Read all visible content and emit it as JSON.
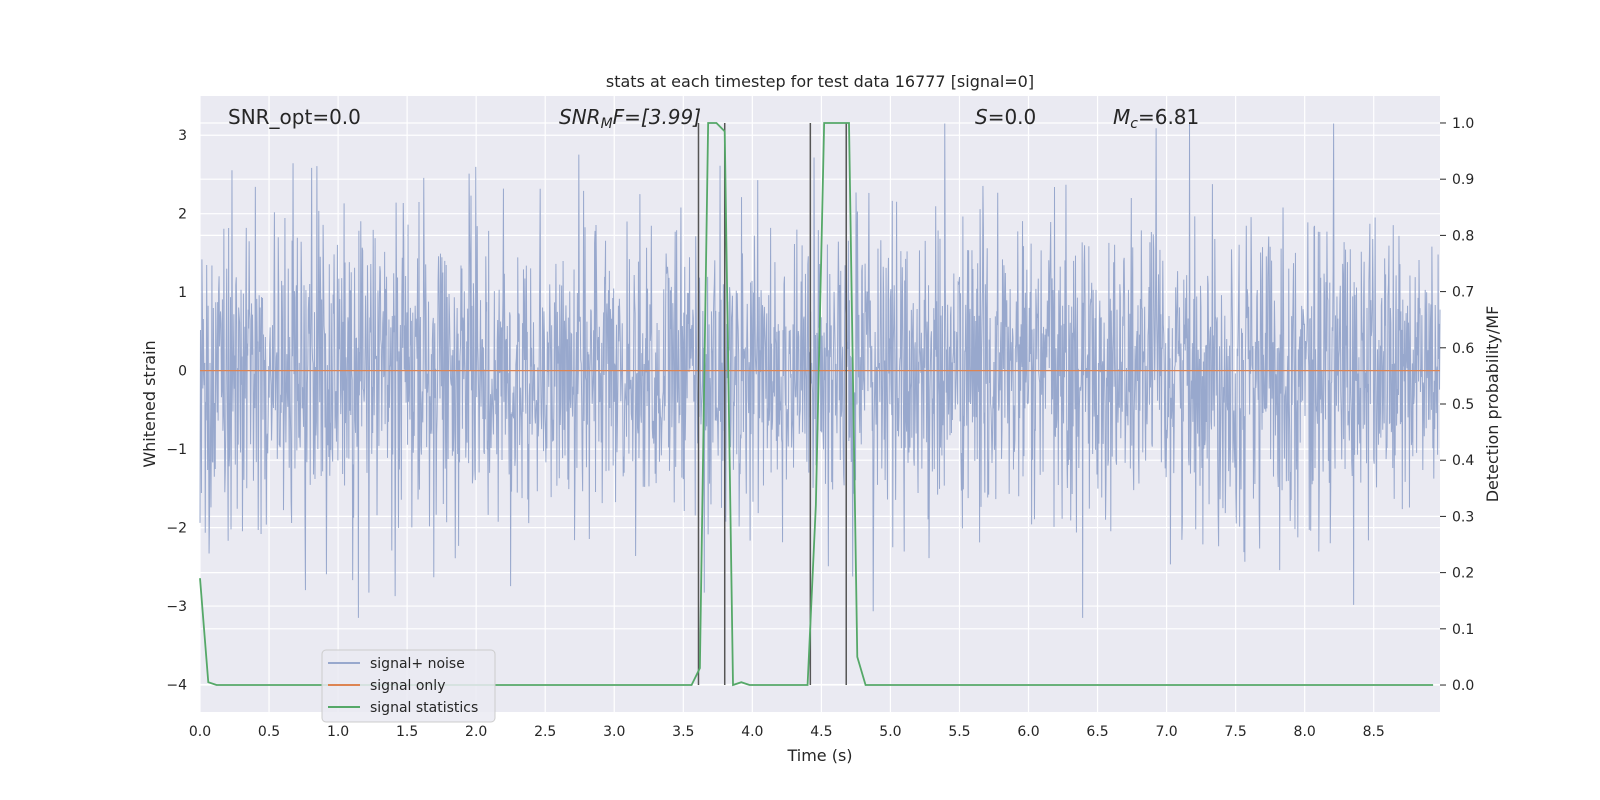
{
  "chart_data": {
    "type": "line",
    "title": "stats at each timestep for test data 16777 [signal=0]",
    "xlabel": "Time (s)",
    "ylabel": "Whitened strain",
    "y2label": "Detection probability/MF",
    "xlim": [
      0.0,
      8.98
    ],
    "ylim": [
      -4.35,
      3.5
    ],
    "y2lim": [
      -0.048,
      1.048
    ],
    "xticks": [
      0.0,
      0.5,
      1.0,
      1.5,
      2.0,
      2.5,
      3.0,
      3.5,
      4.0,
      4.5,
      5.0,
      5.5,
      6.0,
      6.5,
      7.0,
      7.5,
      8.0,
      8.5
    ],
    "xtick_labels": [
      "0.0",
      "0.5",
      "1.0",
      "1.5",
      "2.0",
      "2.5",
      "3.0",
      "3.5",
      "4.0",
      "4.5",
      "5.0",
      "5.5",
      "6.0",
      "6.5",
      "7.0",
      "7.5",
      "8.0",
      "8.5"
    ],
    "yticks": [
      -4,
      -3,
      -2,
      -1,
      0,
      1,
      2,
      3
    ],
    "ytick_labels": [
      "−4",
      "−3",
      "−2",
      "−1",
      "0",
      "1",
      "2",
      "3"
    ],
    "y2ticks": [
      0.0,
      0.1,
      0.2,
      0.3,
      0.4,
      0.5,
      0.6,
      0.7,
      0.8,
      0.9,
      1.0
    ],
    "y2tick_labels": [
      "0.0",
      "0.1",
      "0.2",
      "0.3",
      "0.4",
      "0.5",
      "0.6",
      "0.7",
      "0.8",
      "0.9",
      "1.0"
    ],
    "grid": true,
    "legend_position": "lower-left",
    "annotations": {
      "snr_opt": "SNR_opt=0.0",
      "snr_mf_main": "SNR",
      "snr_mf_sub": "M",
      "snr_mf_rest": "F=[3.99]",
      "s_main": "S",
      "s_rest": "=0.0",
      "mc_main": "M",
      "mc_sub": "c",
      "mc_rest": "=6.81"
    },
    "series": [
      {
        "name": "signal+ noise",
        "axis": "left",
        "color": "#98a8cd",
        "noise_std": 0.95,
        "noise_max_abs": 3.15,
        "x_range": [
          0.0,
          8.98
        ]
      },
      {
        "name": "signal only",
        "axis": "left",
        "color": "#dd8452",
        "x": [
          0.0,
          8.98
        ],
        "y": [
          0.0,
          0.0
        ]
      },
      {
        "name": "signal statistics",
        "axis": "right",
        "color": "#55a868",
        "x": [
          0.0,
          0.06,
          0.12,
          0.5,
          1.0,
          1.5,
          2.0,
          2.5,
          3.0,
          3.5,
          3.56,
          3.62,
          3.68,
          3.74,
          3.8,
          3.86,
          3.92,
          3.98,
          4.1,
          4.2,
          4.3,
          4.4,
          4.46,
          4.52,
          4.58,
          4.64,
          4.7,
          4.76,
          4.82,
          4.9,
          5.5,
          6.0,
          6.5,
          7.0,
          7.5,
          8.0,
          8.5,
          8.93
        ],
        "y": [
          0.19,
          0.005,
          0.0,
          0.0,
          0.0,
          0.0,
          0.0,
          0.0,
          0.0,
          0.0,
          0.0,
          0.03,
          1.0,
          1.0,
          0.985,
          0.0,
          0.005,
          0.0,
          0.0,
          0.0,
          0.0,
          0.0,
          0.32,
          1.0,
          1.0,
          1.0,
          1.0,
          0.05,
          0.0,
          0.0,
          0.0,
          0.0,
          0.0,
          0.0,
          0.0,
          0.0,
          0.0,
          0.0
        ]
      }
    ],
    "vlines": {
      "color": "#555555",
      "x": [
        3.61,
        3.8,
        4.42,
        4.68
      ],
      "y2_top": 1.0
    }
  }
}
